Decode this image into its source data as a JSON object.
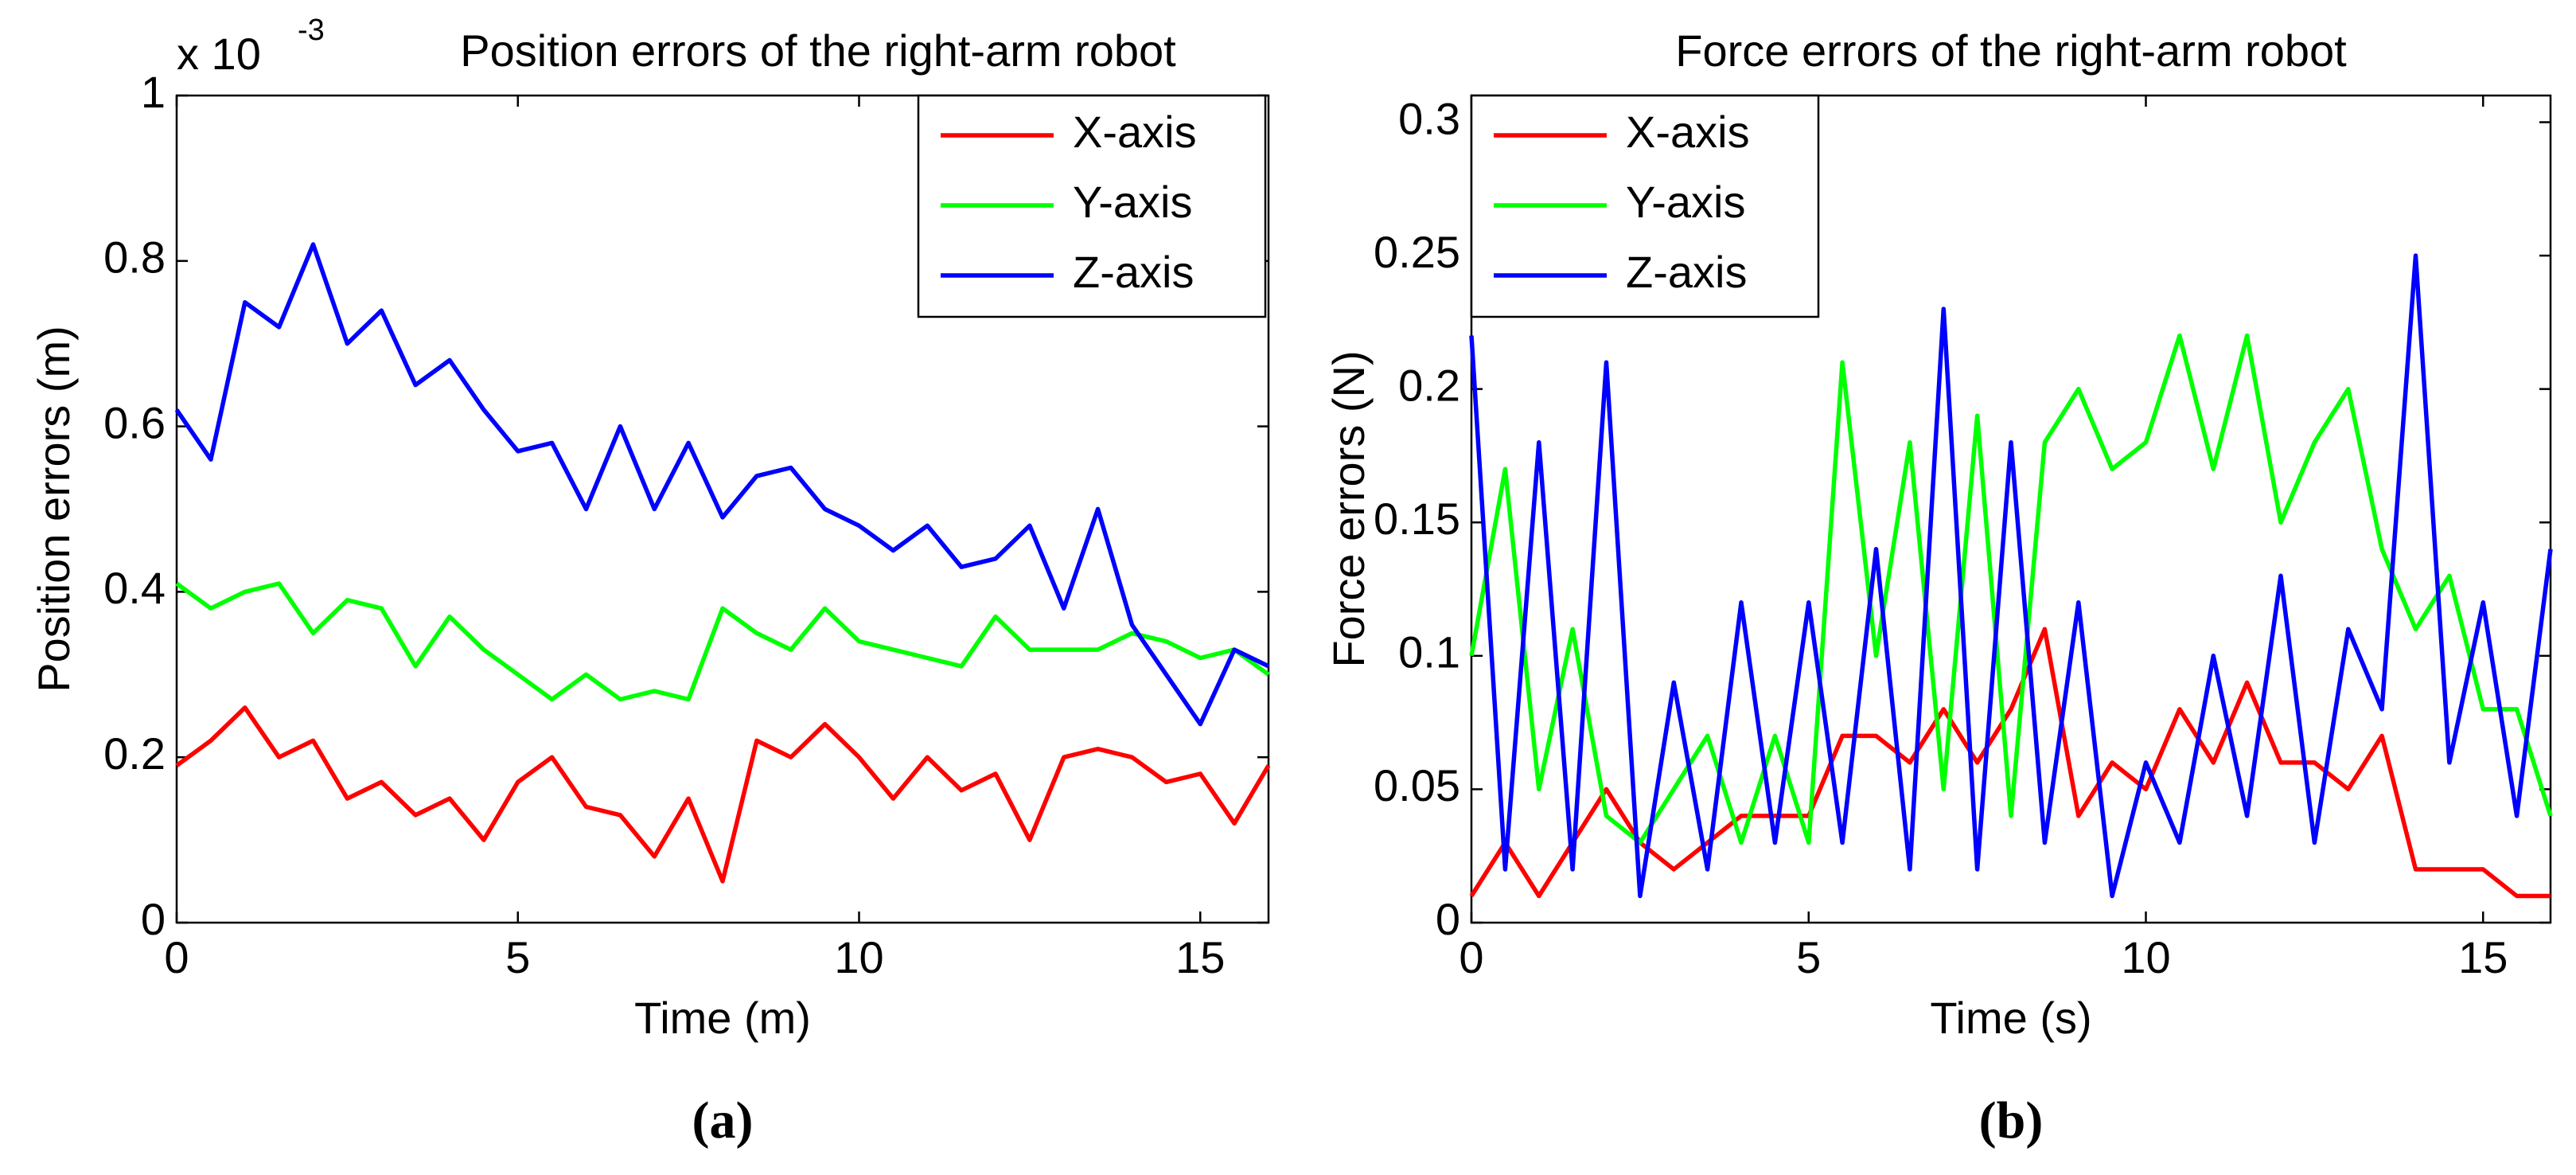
{
  "chart_data": [
    {
      "type": "line",
      "title": "Position errors of the right-arm robot",
      "x_label": "Time (m)",
      "y_label": "Position errors (m)",
      "y_multiplier": {
        "base": "x 10",
        "exponent": "-3"
      },
      "caption": "(a)",
      "x": [
        0,
        0.5,
        1,
        1.5,
        2,
        2.5,
        3,
        3.5,
        4,
        4.5,
        5,
        5.5,
        6,
        6.5,
        7,
        7.5,
        8,
        8.5,
        9,
        9.5,
        10,
        10.5,
        11,
        11.5,
        12,
        12.5,
        13,
        13.5,
        14,
        14.5,
        15,
        15.5,
        16
      ],
      "xlim": [
        0,
        16
      ],
      "xticks": [
        0,
        5,
        10,
        15
      ],
      "ylim": [
        0,
        1
      ],
      "yticks": [
        0,
        0.2,
        0.4,
        0.6,
        0.8,
        1
      ],
      "legend": "upper right",
      "series": [
        {
          "name": "X-axis",
          "color": "#ff0000",
          "values": [
            0.19,
            0.22,
            0.26,
            0.2,
            0.22,
            0.15,
            0.17,
            0.13,
            0.15,
            0.1,
            0.17,
            0.2,
            0.14,
            0.13,
            0.08,
            0.15,
            0.05,
            0.22,
            0.2,
            0.24,
            0.2,
            0.15,
            0.2,
            0.16,
            0.18,
            0.1,
            0.2,
            0.21,
            0.2,
            0.17,
            0.18,
            0.12,
            0.19
          ]
        },
        {
          "name": "Y-axis",
          "color": "#00ff00",
          "values": [
            0.41,
            0.38,
            0.4,
            0.41,
            0.35,
            0.39,
            0.38,
            0.31,
            0.37,
            0.33,
            0.3,
            0.27,
            0.3,
            0.27,
            0.28,
            0.27,
            0.38,
            0.35,
            0.33,
            0.38,
            0.34,
            0.33,
            0.32,
            0.31,
            0.37,
            0.33,
            0.33,
            0.33,
            0.35,
            0.34,
            0.32,
            0.33,
            0.3
          ]
        },
        {
          "name": "Z-axis",
          "color": "#0000ff",
          "values": [
            0.62,
            0.56,
            0.75,
            0.72,
            0.82,
            0.7,
            0.74,
            0.65,
            0.68,
            0.62,
            0.57,
            0.58,
            0.5,
            0.6,
            0.5,
            0.58,
            0.49,
            0.54,
            0.55,
            0.5,
            0.48,
            0.45,
            0.48,
            0.43,
            0.44,
            0.48,
            0.38,
            0.5,
            0.36,
            0.3,
            0.24,
            0.33,
            0.31
          ]
        }
      ]
    },
    {
      "type": "line",
      "title": "Force errors of the right-arm robot",
      "x_label": "Time (s)",
      "y_label": "Force errors (N)",
      "caption": "(b)",
      "x": [
        0,
        0.5,
        1,
        1.5,
        2,
        2.5,
        3,
        3.5,
        4,
        4.5,
        5,
        5.5,
        6,
        6.5,
        7,
        7.5,
        8,
        8.5,
        9,
        9.5,
        10,
        10.5,
        11,
        11.5,
        12,
        12.5,
        13,
        13.5,
        14,
        14.5,
        15,
        15.5,
        16
      ],
      "xlim": [
        0,
        16
      ],
      "xticks": [
        0,
        5,
        10,
        15
      ],
      "ylim": [
        0,
        0.31
      ],
      "yticks": [
        0,
        0.05,
        0.1,
        0.15,
        0.2,
        0.25,
        0.3
      ],
      "legend": "upper left",
      "series": [
        {
          "name": "X-axis",
          "color": "#ff0000",
          "values": [
            0.01,
            0.03,
            0.01,
            0.03,
            0.05,
            0.03,
            0.02,
            0.03,
            0.04,
            0.04,
            0.04,
            0.07,
            0.07,
            0.06,
            0.08,
            0.06,
            0.08,
            0.11,
            0.04,
            0.06,
            0.05,
            0.08,
            0.06,
            0.09,
            0.06,
            0.06,
            0.05,
            0.07,
            0.02,
            0.02,
            0.02,
            0.01,
            0.01
          ]
        },
        {
          "name": "Y-axis",
          "color": "#00ff00",
          "values": [
            0.1,
            0.17,
            0.05,
            0.11,
            0.04,
            0.03,
            0.05,
            0.07,
            0.03,
            0.07,
            0.03,
            0.21,
            0.1,
            0.18,
            0.05,
            0.19,
            0.04,
            0.18,
            0.2,
            0.17,
            0.18,
            0.22,
            0.17,
            0.22,
            0.15,
            0.18,
            0.2,
            0.14,
            0.11,
            0.13,
            0.08,
            0.08,
            0.04
          ]
        },
        {
          "name": "Z-axis",
          "color": "#0000ff",
          "values": [
            0.22,
            0.02,
            0.18,
            0.02,
            0.21,
            0.01,
            0.09,
            0.02,
            0.12,
            0.03,
            0.12,
            0.03,
            0.14,
            0.02,
            0.23,
            0.02,
            0.18,
            0.03,
            0.12,
            0.01,
            0.06,
            0.03,
            0.1,
            0.04,
            0.13,
            0.03,
            0.11,
            0.08,
            0.25,
            0.06,
            0.12,
            0.04,
            0.14
          ]
        }
      ]
    }
  ]
}
